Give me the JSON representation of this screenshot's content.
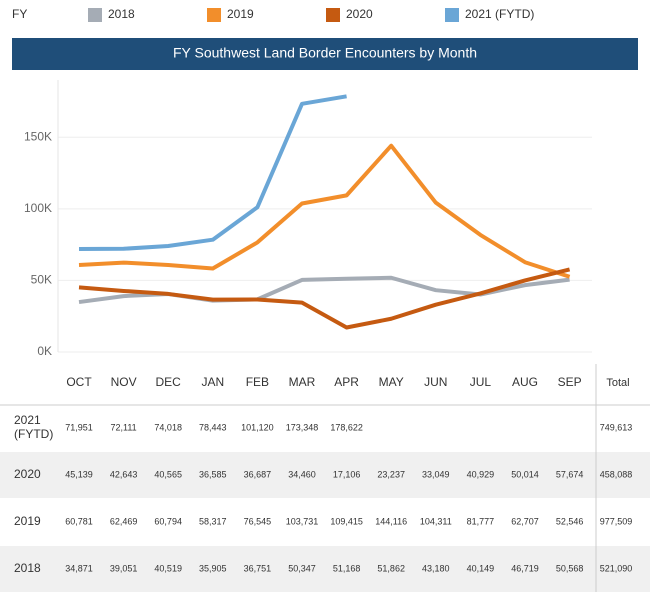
{
  "chart_data": {
    "type": "line",
    "legend_title": "FY",
    "title": "FY Southwest Land Border Encounters by Month",
    "categories": [
      "OCT",
      "NOV",
      "DEC",
      "JAN",
      "FEB",
      "MAR",
      "APR",
      "MAY",
      "JUN",
      "JUL",
      "AUG",
      "SEP"
    ],
    "total_header": "Total",
    "ylim": [
      0,
      190000
    ],
    "yticks": [
      {
        "value": 0,
        "label": "0K"
      },
      {
        "value": 50000,
        "label": "50K"
      },
      {
        "value": 100000,
        "label": "100K"
      },
      {
        "value": 150000,
        "label": "150K"
      }
    ],
    "grid": true,
    "series": [
      {
        "name": "2018",
        "color": "#a5acb5",
        "values": [
          34871,
          39051,
          40519,
          35905,
          36751,
          50347,
          51168,
          51862,
          43180,
          40149,
          46719,
          50568
        ],
        "value_labels": [
          "34,871",
          "39,051",
          "40,519",
          "35,905",
          "36,751",
          "50,347",
          "51,168",
          "51,862",
          "43,180",
          "40,149",
          "46,719",
          "50,568"
        ],
        "total": "521,090"
      },
      {
        "name": "2019",
        "color": "#f28e2b",
        "values": [
          60781,
          62469,
          60794,
          58317,
          76545,
          103731,
          109415,
          144116,
          104311,
          81777,
          62707,
          52546
        ],
        "value_labels": [
          "60,781",
          "62,469",
          "60,794",
          "58,317",
          "76,545",
          "103,731",
          "109,415",
          "144,116",
          "104,311",
          "81,777",
          "62,707",
          "52,546"
        ],
        "total": "977,509"
      },
      {
        "name": "2020",
        "color": "#c55a11",
        "values": [
          45139,
          42643,
          40565,
          36585,
          36687,
          34460,
          17106,
          23237,
          33049,
          40929,
          50014,
          57674
        ],
        "value_labels": [
          "45,139",
          "42,643",
          "40,565",
          "36,585",
          "36,687",
          "34,460",
          "17,106",
          "23,237",
          "33,049",
          "40,929",
          "50,014",
          "57,674"
        ],
        "total": "458,088"
      },
      {
        "name": "2021 (FYTD)",
        "color": "#6aa6d6",
        "values": [
          71951,
          72111,
          74018,
          78443,
          101120,
          173348,
          178622,
          null,
          null,
          null,
          null,
          null
        ],
        "value_labels": [
          "71,951",
          "72,111",
          "74,018",
          "78,443",
          "101,120",
          "173,348",
          "178,622",
          null,
          null,
          null,
          null,
          null
        ],
        "total": "749,613"
      }
    ]
  }
}
